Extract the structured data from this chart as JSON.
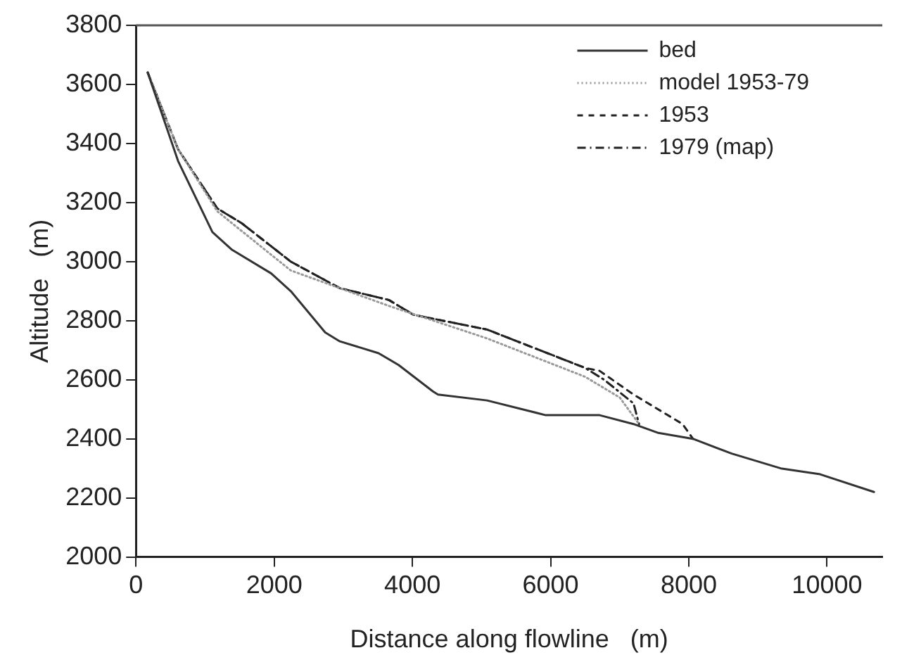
{
  "chart_data": {
    "type": "line",
    "xlabel": "Distance along flowline   (m)",
    "ylabel": "Altitude   (m)",
    "xlim": [
      0,
      10800
    ],
    "ylim": [
      2000,
      3800
    ],
    "xticks": [
      0,
      2000,
      4000,
      6000,
      8000,
      10000
    ],
    "yticks": [
      2000,
      2200,
      2400,
      2600,
      2800,
      3000,
      3200,
      3400,
      3600,
      3800
    ],
    "grid": false,
    "legend": "top right",
    "marker": "none",
    "series": [
      {
        "name": "bed",
        "color": "#333333",
        "line_style": "solid",
        "x": [
          170,
          610,
          1106,
          1390,
          1957,
          2240,
          2738,
          2950,
          3510,
          3800,
          4300,
          4370,
          5080,
          5930,
          6710,
          7200,
          7560,
          8060,
          8620,
          9330,
          9900,
          10680
        ],
        "values": [
          3640,
          3340,
          3100,
          3040,
          2960,
          2900,
          2760,
          2730,
          2690,
          2650,
          2560,
          2550,
          2530,
          2480,
          2480,
          2450,
          2420,
          2400,
          2350,
          2300,
          2280,
          2220
        ]
      },
      {
        "name": "model 1953-79",
        "color": "#999999",
        "line_style": "dotted",
        "x": [
          170,
          610,
          1177,
          2240,
          3660,
          5080,
          6500,
          7000,
          7280
        ],
        "values": [
          3640,
          3380,
          3170,
          2970,
          2850,
          2740,
          2610,
          2540,
          2450
        ]
      },
      {
        "name": "1953",
        "color": "#222222",
        "line_style": "dashed",
        "x": [
          170,
          610,
          1177,
          1530,
          2240,
          2950,
          3660,
          4015,
          5080,
          6500,
          6710,
          7200,
          7910,
          8060
        ],
        "values": [
          3640,
          3380,
          3180,
          3130,
          3000,
          2910,
          2870,
          2820,
          2770,
          2640,
          2630,
          2550,
          2450,
          2400
        ]
      },
      {
        "name": "1979 (map)",
        "color": "#222222",
        "line_style": "dashdot",
        "x": [
          170,
          610,
          1177,
          1530,
          2240,
          2950,
          3660,
          4015,
          5080,
          6500,
          6775,
          7200,
          7280
        ],
        "values": [
          3640,
          3380,
          3180,
          3130,
          3000,
          2910,
          2870,
          2820,
          2770,
          2640,
          2600,
          2520,
          2450
        ]
      }
    ]
  }
}
